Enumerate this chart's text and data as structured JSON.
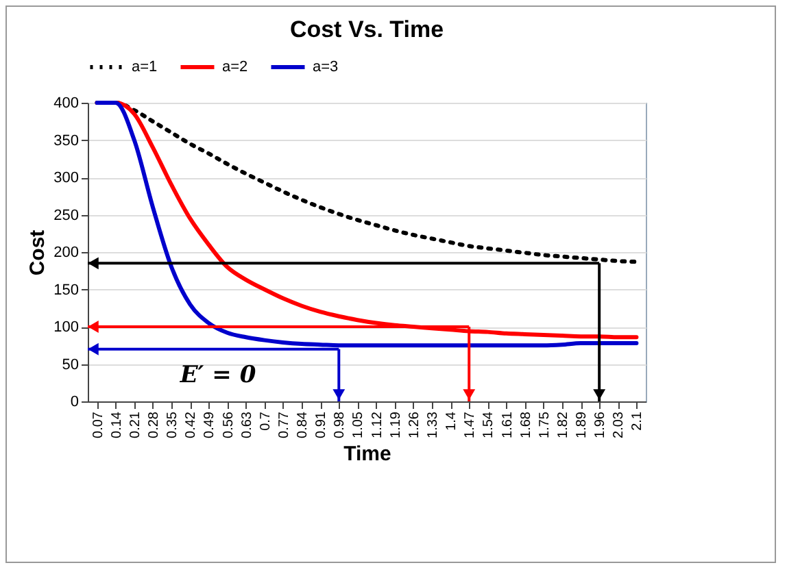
{
  "chart_data": {
    "type": "line",
    "title": "Cost  Vs. Time",
    "xlabel": "Time",
    "ylabel": "Cost",
    "categories": [
      "0.07",
      "0.14",
      "0.21",
      "0.28",
      "0.35",
      "0.42",
      "0.49",
      "0.56",
      "0.63",
      "0.7",
      "0.77",
      "0.84",
      "0.91",
      "0.98",
      "1.05",
      "1.12",
      "1.19",
      "1.26",
      "1.33",
      "1.4",
      "1.47",
      "1.54",
      "1.61",
      "1.68",
      "1.75",
      "1.82",
      "1.89",
      "1.96",
      "2.03",
      "2.1"
    ],
    "series": [
      {
        "name": "a=1",
        "color": "#000000",
        "line_style": "dotted",
        "values": [
          400,
          400,
          390,
          375,
          360,
          345,
          332,
          318,
          305,
          293,
          281,
          270,
          260,
          251,
          243,
          236,
          229,
          223,
          218,
          213,
          208,
          205,
          202,
          199,
          196,
          194,
          192,
          190,
          188,
          187
        ]
      },
      {
        "name": "a=2",
        "color": "#ff0000",
        "line_style": "solid",
        "values": [
          400,
          400,
          385,
          340,
          290,
          245,
          210,
          180,
          163,
          150,
          138,
          128,
          120,
          114,
          109,
          105,
          102,
          100,
          98,
          96,
          94,
          93,
          91,
          90,
          89,
          88,
          87,
          87,
          86,
          86
        ]
      },
      {
        "name": "a=3",
        "color": "#0000cc",
        "line_style": "solid",
        "values": [
          400,
          400,
          350,
          260,
          180,
          130,
          105,
          92,
          86,
          82,
          79,
          77,
          76,
          75,
          75,
          75,
          75,
          75,
          75,
          75,
          75,
          75,
          75,
          75,
          75,
          76,
          78,
          78,
          78,
          78
        ]
      }
    ],
    "ylim": [
      0,
      400
    ],
    "yticks": [
      0,
      50,
      100,
      150,
      200,
      250,
      300,
      350,
      400
    ],
    "grid": "y",
    "legend": "top",
    "ref_lines": [
      {
        "axis": "y",
        "value": 185,
        "color": "#000000"
      },
      {
        "axis": "x",
        "value": "1.96",
        "color": "#000000"
      },
      {
        "axis": "y",
        "value": 100,
        "color": "#ff0000"
      },
      {
        "axis": "x",
        "value": "1.47",
        "color": "#ff0000"
      },
      {
        "axis": "y",
        "value": 70,
        "color": "#0000cc"
      },
      {
        "axis": "x",
        "value": "0.98",
        "color": "#0000cc"
      }
    ],
    "annotations": [
      "E′ = 0"
    ]
  }
}
